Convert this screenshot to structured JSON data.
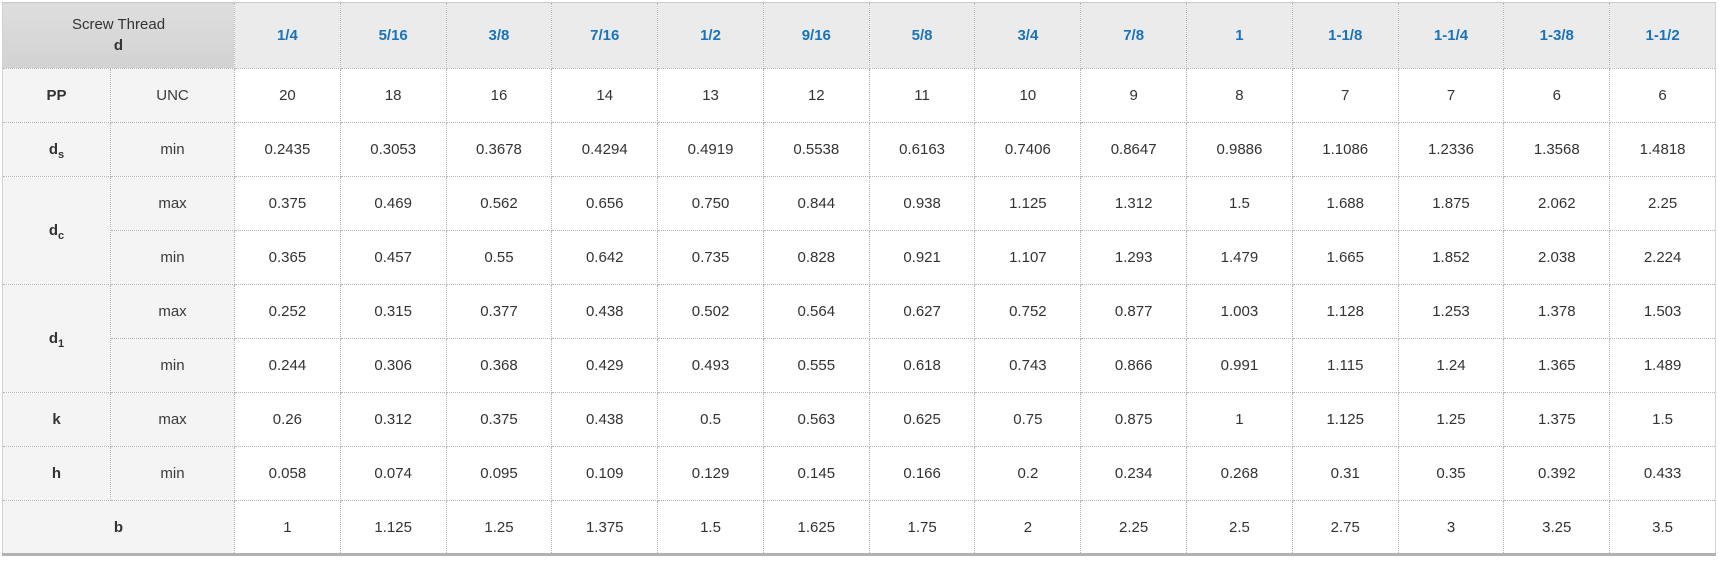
{
  "table": {
    "corner": {
      "line1": "Screw Thread",
      "line2": "d"
    },
    "columns": [
      "1/4",
      "5/16",
      "3/8",
      "7/16",
      "1/2",
      "9/16",
      "5/8",
      "3/4",
      "7/8",
      "1",
      "1-1/8",
      "1-1/4",
      "1-3/8",
      "1-1/2"
    ],
    "rows": [
      {
        "label": "PP",
        "sub": "",
        "measure": "UNC",
        "values": [
          "20",
          "18",
          "16",
          "14",
          "13",
          "12",
          "11",
          "10",
          "9",
          "8",
          "7",
          "7",
          "6",
          "6"
        ]
      },
      {
        "label": "d",
        "sub": "s",
        "measure": "min",
        "values": [
          "0.2435",
          "0.3053",
          "0.3678",
          "0.4294",
          "0.4919",
          "0.5538",
          "0.6163",
          "0.7406",
          "0.8647",
          "0.9886",
          "1.1086",
          "1.2336",
          "1.3568",
          "1.4818"
        ]
      },
      {
        "label": "d",
        "sub": "c",
        "labelRowspan": 2,
        "measure": "max",
        "values": [
          "0.375",
          "0.469",
          "0.562",
          "0.656",
          "0.750",
          "0.844",
          "0.938",
          "1.125",
          "1.312",
          "1.5",
          "1.688",
          "1.875",
          "2.062",
          "2.25"
        ]
      },
      {
        "measure": "min",
        "values": [
          "0.365",
          "0.457",
          "0.55",
          "0.642",
          "0.735",
          "0.828",
          "0.921",
          "1.107",
          "1.293",
          "1.479",
          "1.665",
          "1.852",
          "2.038",
          "2.224"
        ]
      },
      {
        "label": "d",
        "sub": "1",
        "labelRowspan": 2,
        "measure": "max",
        "values": [
          "0.252",
          "0.315",
          "0.377",
          "0.438",
          "0.502",
          "0.564",
          "0.627",
          "0.752",
          "0.877",
          "1.003",
          "1.128",
          "1.253",
          "1.378",
          "1.503"
        ]
      },
      {
        "measure": "min",
        "values": [
          "0.244",
          "0.306",
          "0.368",
          "0.429",
          "0.493",
          "0.555",
          "0.618",
          "0.743",
          "0.866",
          "0.991",
          "1.115",
          "1.24",
          "1.365",
          "1.489"
        ]
      },
      {
        "label": "k",
        "sub": "",
        "measure": "max",
        "values": [
          "0.26",
          "0.312",
          "0.375",
          "0.438",
          "0.5",
          "0.563",
          "0.625",
          "0.75",
          "0.875",
          "1",
          "1.125",
          "1.25",
          "1.375",
          "1.5"
        ]
      },
      {
        "label": "h",
        "sub": "",
        "measure": "min",
        "values": [
          "0.058",
          "0.074",
          "0.095",
          "0.109",
          "0.129",
          "0.145",
          "0.166",
          "0.2",
          "0.234",
          "0.268",
          "0.31",
          "0.35",
          "0.392",
          "0.433"
        ]
      },
      {
        "label": "b",
        "sub": "",
        "labelColspan": 2,
        "values": [
          "1",
          "1.125",
          "1.25",
          "1.375",
          "1.5",
          "1.625",
          "1.75",
          "2",
          "2.25",
          "2.5",
          "2.75",
          "3",
          "3.25",
          "3.5"
        ]
      }
    ],
    "colors": {
      "header_text": "#1a73b8",
      "body_text": "#333333",
      "corner_bg": "#d8d8d8",
      "column_header_bg": "#ebebeb",
      "label_bg": "#f4f4f4",
      "border": "#b5b5b5"
    }
  }
}
